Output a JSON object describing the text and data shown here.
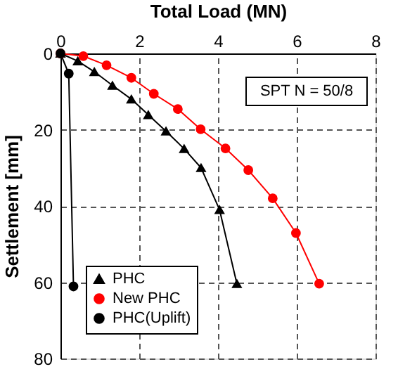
{
  "chart_data": {
    "type": "line",
    "xlabel": "Total Load (MN)",
    "ylabel": "Settlement [mm]",
    "xlim": [
      0,
      8
    ],
    "xticks": [
      0,
      2,
      4,
      6,
      8
    ],
    "ylim": [
      80,
      0
    ],
    "yticks": [
      0,
      20,
      40,
      60,
      80
    ],
    "grid": true,
    "line_style": "solid",
    "legend": "bottom left",
    "annotations": [
      "SPT N = 50/8"
    ],
    "series": [
      {
        "name": "PHC",
        "color": "#000000",
        "marker": "triangle",
        "x": [
          0,
          0.44,
          0.86,
          1.32,
          1.8,
          2.23,
          2.68,
          3.14,
          3.57,
          4.04,
          4.48
        ],
        "values": [
          0,
          2,
          4.8,
          8.4,
          12,
          16.1,
          20.4,
          25,
          30,
          41,
          60.4
        ]
      },
      {
        "name": "New PHC",
        "color": "#ff0000",
        "marker": "circle",
        "x": [
          0,
          0.58,
          1.17,
          1.8,
          2.37,
          2.98,
          3.56,
          4.19,
          4.77,
          5.39,
          5.98,
          6.57
        ],
        "values": [
          0,
          0.7,
          3.1,
          6.4,
          10.6,
          14.6,
          19.9,
          24.9,
          30.6,
          38,
          47.1,
          60.4
        ]
      },
      {
        "name": "PHC(Uplift)",
        "color": "#000000",
        "marker": "circle",
        "x": [
          0,
          0.21,
          0.33
        ],
        "values": [
          0,
          5.3,
          61.1
        ]
      }
    ]
  }
}
